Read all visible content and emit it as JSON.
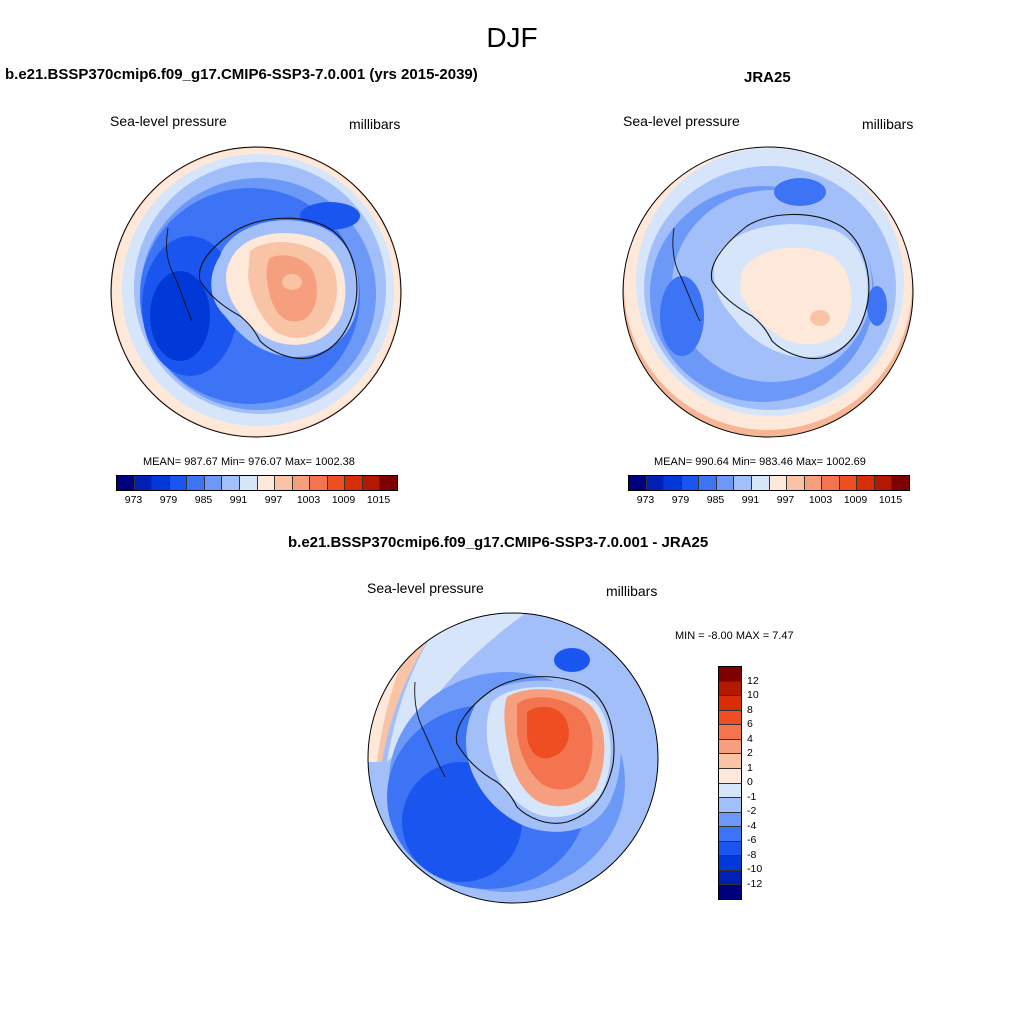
{
  "title": "DJF",
  "panels": {
    "model": {
      "title": "b.e21.BSSP370cmip6.f09_g17.CMIP6-SSP3-7.0.001 (yrs 2015-2039)",
      "field": "Sea-level pressure",
      "units": "millibars",
      "stats": "MEAN= 987.67  Min= 976.07  Max= 1002.38"
    },
    "obs": {
      "title": "JRA25",
      "field": "Sea-level pressure",
      "units": "millibars",
      "stats": "MEAN= 990.64  Min= 983.46  Max= 1002.69"
    },
    "diff": {
      "title": "b.e21.BSSP370cmip6.f09_g17.CMIP6-SSP3-7.0.001 - JRA25",
      "field": "Sea-level pressure",
      "units": "millibars",
      "stats": "MIN =  -8.00 MAX =   7.47"
    }
  },
  "colorbar_abs": {
    "colors": [
      "#00007f",
      "#0020b4",
      "#0039d8",
      "#1a55f0",
      "#3d74f5",
      "#6c98f7",
      "#a3bff9",
      "#d7e5fb",
      "#fde8da",
      "#f9c3a6",
      "#f69f7e",
      "#f47450",
      "#ef4d22",
      "#d82e07",
      "#b31800",
      "#7f0000"
    ],
    "labels": [
      "973",
      "979",
      "985",
      "991",
      "997",
      "1003",
      "1009",
      "1015"
    ]
  },
  "colorbar_diff": {
    "colors": [
      "#7f0000",
      "#b31800",
      "#d82e07",
      "#ef4d22",
      "#f47450",
      "#f69f7e",
      "#f9c3a6",
      "#fde8da",
      "#d7e5fb",
      "#a3bff9",
      "#6c98f7",
      "#3d74f5",
      "#1a55f0",
      "#0039d8",
      "#0020b4",
      "#00007f"
    ],
    "labels": [
      "12",
      "10",
      "8",
      "6",
      "4",
      "2",
      "1",
      "0",
      "-1",
      "-2",
      "-4",
      "-6",
      "-8",
      "-10",
      "-12"
    ]
  }
}
